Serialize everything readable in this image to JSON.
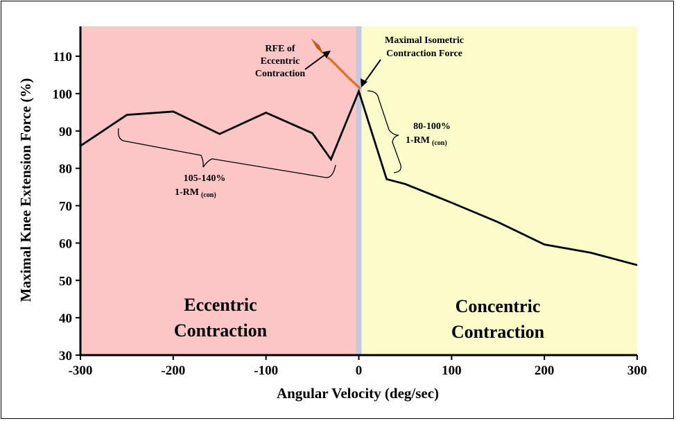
{
  "chart_data": {
    "type": "line",
    "xlabel": "Angular Velocity (deg/sec)",
    "ylabel": "Maximal Knee Extension Force (%)",
    "xlim": [
      -300,
      300
    ],
    "ylim": [
      30,
      118
    ],
    "x_ticks": [
      -300,
      -200,
      -100,
      0,
      100,
      200,
      300
    ],
    "x_tick_labels": [
      "-300",
      "-200",
      "-100",
      "0",
      "100",
      "200",
      "300"
    ],
    "y_ticks": [
      30,
      40,
      50,
      60,
      70,
      80,
      90,
      100,
      110
    ],
    "y_tick_labels": [
      "30",
      "40",
      "50",
      "60",
      "70",
      "80",
      "90",
      "100",
      "110"
    ],
    "series": [
      {
        "name": "Knee extension force",
        "x": [
          -300,
          -250,
          -200,
          -150,
          -100,
          -50,
          -30,
          0,
          30,
          50,
          100,
          150,
          200,
          250,
          300
        ],
        "y": [
          86,
          94.3,
          95.2,
          89.2,
          94.9,
          89.4,
          82.4,
          100.6,
          77.1,
          75.8,
          70.8,
          65.6,
          59.6,
          57.4,
          54.1
        ]
      }
    ],
    "rfe_curve": {
      "x": [
        1,
        -10,
        -20,
        -30,
        -38
      ],
      "y": [
        101.5,
        104,
        106.5,
        109,
        110.5
      ]
    },
    "regions": [
      {
        "name": "eccentric",
        "label_lines": [
          "Eccentric",
          "Contraction"
        ],
        "x_range": [
          -300,
          -3
        ],
        "color": "#fcc5c6"
      },
      {
        "name": "isometric",
        "x_range": [
          -3,
          3
        ],
        "color": "#c3cadf"
      },
      {
        "name": "concentric",
        "label_lines": [
          "Concentric",
          "Contraction"
        ],
        "x_range": [
          3,
          300
        ],
        "color": "#fcfccb"
      }
    ],
    "annotations": {
      "rfe_lines": [
        "RFE of",
        "Eccentric",
        "Contraction"
      ],
      "max_iso_lines": [
        "Maximal Isometric",
        "Contraction Force"
      ],
      "ecc_bracket_lines": [
        "105-140%",
        "1-RM",
        "(con)"
      ],
      "con_bracket_lines": [
        "80-100%",
        "1-RM",
        "(con)"
      ]
    },
    "colors": {
      "line": "#000000",
      "rfe_dots": "#e07020",
      "diamond": "#c8560e"
    }
  }
}
